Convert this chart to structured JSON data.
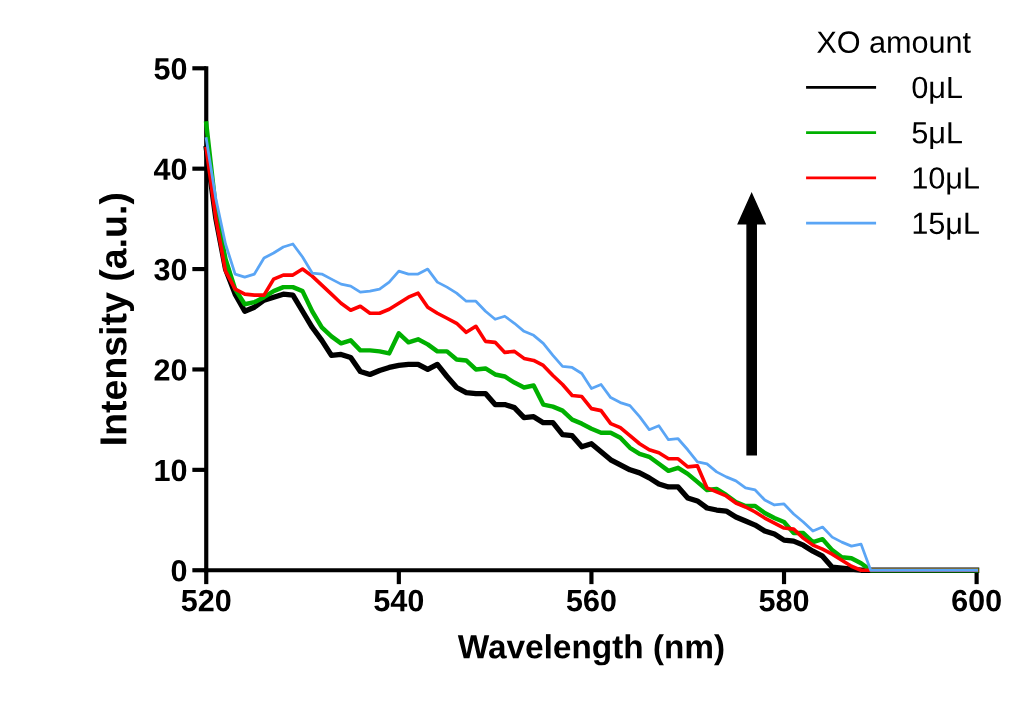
{
  "chart_data": {
    "type": "line",
    "xlabel": "Wavelength (nm)",
    "ylabel": "Intensity (a.u.)",
    "legend_title": "XO amount",
    "x": [
      520,
      521,
      522,
      523,
      524,
      525,
      526,
      527,
      528,
      529,
      530,
      531,
      532,
      533,
      534,
      535,
      536,
      537,
      538,
      539,
      540,
      541,
      542,
      543,
      544,
      545,
      546,
      547,
      548,
      549,
      550,
      551,
      552,
      553,
      554,
      555,
      556,
      557,
      558,
      559,
      560,
      561,
      562,
      563,
      564,
      565,
      566,
      567,
      568,
      569,
      570,
      571,
      572,
      573,
      574,
      575,
      576,
      577,
      578,
      579,
      580,
      581,
      582,
      583,
      584,
      585,
      586,
      587,
      588,
      589,
      600
    ],
    "series": [
      {
        "name": "0μL",
        "color": "#000000",
        "values": [
          42,
          35,
          30,
          27.5,
          25.8,
          26.2,
          26.9,
          27.2,
          27.5,
          27.4,
          25.8,
          24.2,
          22.9,
          21.4,
          21.5,
          21.2,
          19.8,
          19.5,
          19.9,
          20.2,
          20.4,
          20.5,
          20.5,
          20.0,
          20.5,
          19.3,
          18.2,
          17.7,
          17.6,
          17.6,
          16.5,
          16.5,
          16.2,
          15.2,
          15.3,
          14.7,
          14.7,
          13.5,
          13.4,
          12.3,
          12.6,
          11.8,
          11.0,
          10.5,
          10.0,
          9.7,
          9.2,
          8.6,
          8.3,
          8.3,
          7.2,
          6.9,
          6.2,
          6.0,
          5.9,
          5.3,
          4.9,
          4.5,
          3.9,
          3.6,
          3.0,
          2.9,
          2.5,
          1.9,
          1.4,
          0.3,
          0.2,
          0.1,
          0,
          0,
          0
        ]
      },
      {
        "name": "5μL",
        "color": "#00b000",
        "values": [
          44.5,
          36,
          31,
          28,
          26.5,
          26.7,
          27.2,
          27.8,
          28.2,
          28.2,
          27.8,
          25.8,
          24.2,
          23.3,
          22.6,
          22.9,
          21.9,
          21.9,
          21.8,
          21.6,
          23.6,
          22.7,
          23.0,
          22.5,
          21.8,
          21.8,
          21.0,
          20.9,
          20.0,
          20.1,
          19.5,
          19.3,
          18.7,
          18.2,
          18.4,
          16.5,
          16.3,
          15.9,
          15.0,
          14.6,
          14.1,
          13.7,
          13.7,
          13.2,
          12.2,
          11.6,
          11.3,
          10.6,
          9.9,
          10.2,
          9.6,
          8.8,
          8.0,
          8.1,
          7.5,
          6.8,
          6.4,
          6.4,
          5.7,
          5.2,
          4.8,
          3.7,
          3.7,
          2.8,
          3.1,
          2.0,
          1.3,
          1.2,
          0.7,
          0,
          0
        ]
      },
      {
        "name": "10μL",
        "color": "#ff0000",
        "values": [
          42,
          35,
          29.8,
          28,
          27.5,
          27.4,
          27.4,
          29.0,
          29.4,
          29.4,
          30.0,
          29.3,
          28.4,
          27.5,
          26.6,
          25.9,
          26.3,
          25.6,
          25.6,
          26.0,
          26.6,
          27.2,
          27.6,
          26.2,
          25.6,
          25.1,
          24.6,
          23.7,
          24.3,
          22.8,
          22.7,
          21.7,
          21.8,
          21.1,
          20.9,
          20.4,
          19.4,
          18.5,
          17.4,
          17.3,
          16.1,
          15.9,
          14.6,
          14.2,
          13.4,
          12.6,
          12.0,
          11.7,
          11.1,
          11.1,
          10.3,
          10.4,
          8.2,
          7.8,
          7.4,
          6.7,
          6.3,
          5.8,
          5.2,
          4.7,
          4.2,
          4.1,
          3.2,
          2.5,
          2.1,
          1.6,
          1.0,
          0.4,
          0,
          0,
          0
        ]
      },
      {
        "name": "15μL",
        "color": "#5aa5f5",
        "values": [
          43,
          37,
          32.5,
          29.5,
          29.2,
          29.5,
          31.1,
          31.6,
          32.2,
          32.5,
          31.2,
          29.6,
          29.5,
          29.0,
          28.5,
          28.3,
          27.7,
          27.8,
          28.0,
          28.7,
          29.8,
          29.5,
          29.5,
          30.0,
          28.7,
          28.2,
          27.6,
          26.8,
          26.8,
          25.8,
          25.0,
          25.3,
          24.6,
          23.8,
          23.4,
          22.6,
          21.4,
          20.3,
          20.2,
          19.6,
          18.1,
          18.5,
          17.2,
          16.7,
          16.4,
          15.3,
          14.0,
          14.4,
          13.0,
          13.1,
          12.0,
          10.8,
          10.6,
          9.8,
          9.3,
          8.9,
          8.2,
          8.0,
          7.0,
          6.5,
          6.6,
          5.6,
          4.8,
          3.9,
          4.3,
          3.3,
          2.8,
          2.4,
          2.6,
          0,
          0
        ]
      }
    ],
    "xlim": [
      520,
      600
    ],
    "xticks": [
      520,
      540,
      560,
      580,
      600
    ],
    "ylim": [
      0,
      50
    ],
    "yticks": [
      0,
      10,
      20,
      30,
      40,
      50
    ],
    "grid": false,
    "legend": "top right",
    "marker": "none",
    "line_style": "solid"
  }
}
